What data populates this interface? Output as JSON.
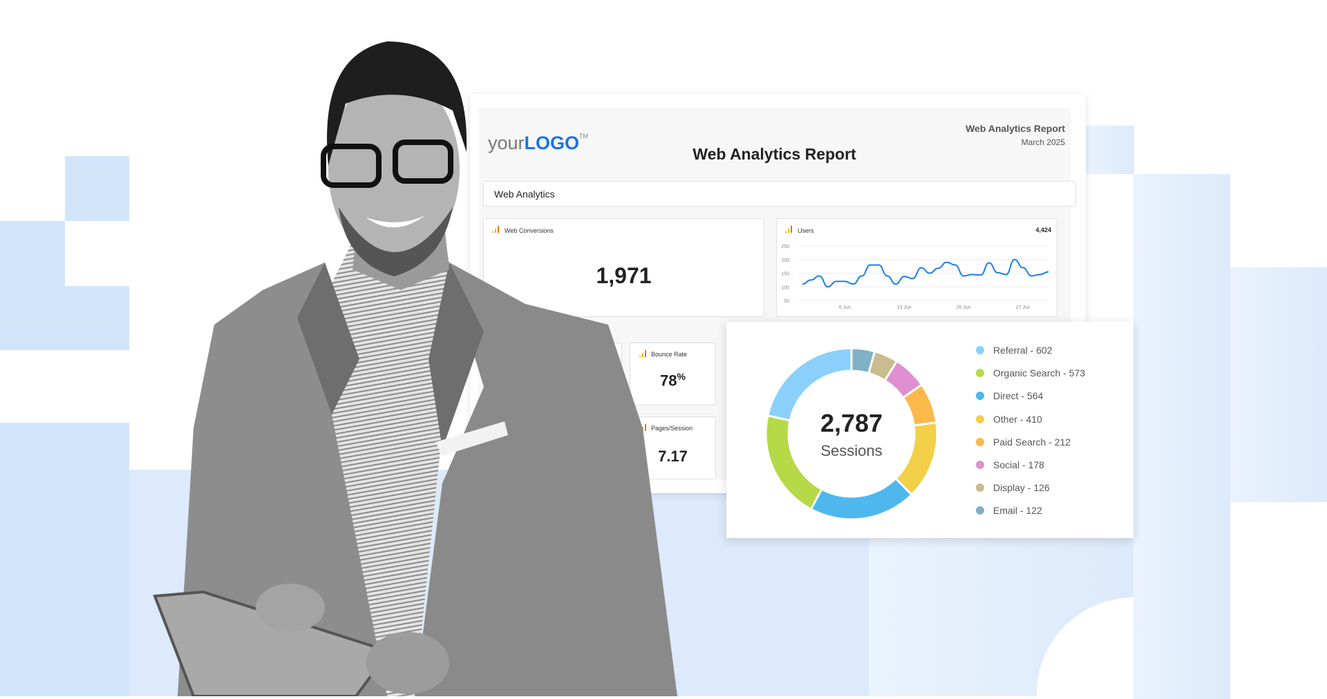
{
  "logo": {
    "your": "your",
    "brand": "LOGO",
    "tm": "TM"
  },
  "header": {
    "report_name": "Web Analytics Report",
    "date": "March 2025",
    "title": "Web Analytics Report"
  },
  "section": {
    "label": "Web Analytics"
  },
  "cards": {
    "conversions": {
      "label": "Web Conversions",
      "value": "1,971"
    },
    "users": {
      "label": "Users",
      "total": "4,424"
    },
    "bounce": {
      "label": "Bounce Rate",
      "value": "78",
      "unit": "%"
    },
    "pages": {
      "label": "Pages/Session",
      "value": "7.17"
    }
  },
  "colors": {
    "accent": "#1a73e8",
    "line": "#1a7cf0",
    "analytics_icon": "#f4b400"
  },
  "chart_data": [
    {
      "type": "line",
      "title": "Users",
      "ylim": [
        50,
        250
      ],
      "yticks": [
        250,
        200,
        150,
        100,
        50
      ],
      "xticks": [
        "6 Jun",
        "13 Jun",
        "20 Jun",
        "27 Jun"
      ],
      "x": [
        "1 Jun",
        "2 Jun",
        "3 Jun",
        "4 Jun",
        "5 Jun",
        "6 Jun",
        "7 Jun",
        "8 Jun",
        "9 Jun",
        "10 Jun",
        "11 Jun",
        "12 Jun",
        "13 Jun",
        "14 Jun",
        "15 Jun",
        "16 Jun",
        "17 Jun",
        "18 Jun",
        "19 Jun",
        "20 Jun",
        "21 Jun",
        "22 Jun",
        "23 Jun",
        "24 Jun",
        "25 Jun",
        "26 Jun",
        "27 Jun",
        "28 Jun",
        "29 Jun",
        "30 Jun"
      ],
      "values": [
        110,
        125,
        140,
        100,
        120,
        120,
        110,
        140,
        180,
        180,
        140,
        110,
        138,
        130,
        170,
        150,
        168,
        190,
        180,
        140,
        145,
        143,
        188,
        152,
        145,
        200,
        170,
        140,
        145,
        155
      ]
    },
    {
      "type": "pie",
      "center_value": "2,787",
      "center_label": "Sessions",
      "slices": [
        {
          "name": "Referral",
          "value": 602,
          "label": "Referral - 602",
          "color": "#8ad0fb"
        },
        {
          "name": "Organic Search",
          "value": 573,
          "label": "Organic Search - 573",
          "color": "#b6d947"
        },
        {
          "name": "Direct",
          "value": 564,
          "label": "Direct - 564",
          "color": "#4db7ee"
        },
        {
          "name": "Other",
          "value": 410,
          "label": "Other - 410",
          "color": "#f2d048"
        },
        {
          "name": "Paid Search",
          "value": 212,
          "label": "Paid Search - 212",
          "color": "#fdb84a"
        },
        {
          "name": "Social",
          "value": 178,
          "label": "Social - 178",
          "color": "#e08fd0"
        },
        {
          "name": "Display",
          "value": 126,
          "label": "Display - 126",
          "color": "#c9bd8f"
        },
        {
          "name": "Email",
          "value": 122,
          "label": "Email - 122",
          "color": "#80b1c4"
        }
      ]
    }
  ]
}
